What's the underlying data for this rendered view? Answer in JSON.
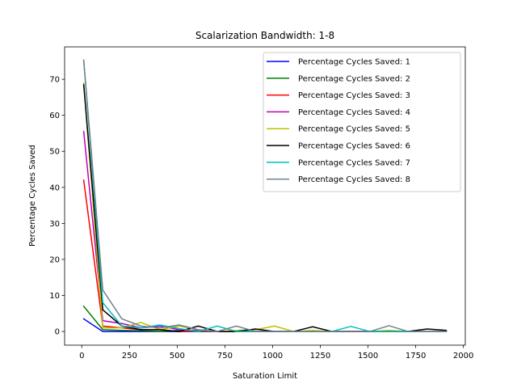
{
  "chart_data": {
    "type": "line",
    "title": "Scalarization Bandwidth: 1-8",
    "xlabel": "Saturation Limit",
    "ylabel": "Percentage Cycles Saved",
    "xlim": [
      -90,
      2010
    ],
    "ylim": [
      -3.8,
      79.0
    ],
    "xticks": [
      0,
      250,
      500,
      750,
      1000,
      1250,
      1500,
      1750,
      2000
    ],
    "yticks": [
      0,
      10,
      20,
      30,
      40,
      50,
      60,
      70
    ],
    "legend_position": "upper right",
    "x": [
      10,
      110,
      210,
      310,
      410,
      510,
      610,
      710,
      810,
      910,
      1010,
      1110,
      1210,
      1310,
      1410,
      1510,
      1610,
      1710,
      1810,
      1910
    ],
    "series": [
      {
        "name": "Percentage Cycles Saved: 1",
        "color": "#0000ff",
        "values": [
          3.5,
          0,
          0,
          0,
          0,
          0,
          0,
          0,
          0,
          0,
          0,
          0,
          0,
          0,
          0,
          0,
          0,
          0,
          0,
          0
        ]
      },
      {
        "name": "Percentage Cycles Saved: 2",
        "color": "#008000",
        "values": [
          7.0,
          0.5,
          0.3,
          0.2,
          0,
          0.3,
          0,
          0,
          0,
          0,
          0,
          0,
          0,
          0,
          0,
          0,
          0,
          0,
          0,
          0
        ]
      },
      {
        "name": "Percentage Cycles Saved: 3",
        "color": "#ff0000",
        "values": [
          42.0,
          1.5,
          1.0,
          0.5,
          0.5,
          0,
          0.2,
          0,
          0,
          0,
          0,
          0,
          0,
          0,
          0,
          0,
          0,
          0,
          0,
          0
        ]
      },
      {
        "name": "Percentage Cycles Saved: 4",
        "color": "#bf00bf",
        "values": [
          55.5,
          3.0,
          2.2,
          1.0,
          1.5,
          0.5,
          0.3,
          0,
          0,
          0,
          0,
          0,
          0,
          0,
          0,
          0,
          0,
          0,
          0,
          0
        ]
      },
      {
        "name": "Percentage Cycles Saved: 5",
        "color": "#bfbf00",
        "values": [
          69.0,
          1.0,
          1.0,
          2.5,
          0.5,
          1.5,
          0.5,
          0,
          0.3,
          0.5,
          1.5,
          0,
          0.3,
          0,
          0,
          0,
          0.3,
          0,
          0,
          0
        ]
      },
      {
        "name": "Percentage Cycles Saved: 6",
        "color": "#000000",
        "values": [
          68.5,
          6.0,
          1.5,
          0.5,
          0.5,
          0,
          1.5,
          0,
          0,
          0.7,
          0,
          0,
          1.3,
          0,
          0,
          0,
          0,
          0,
          0.7,
          0.3
        ]
      },
      {
        "name": "Percentage Cycles Saved: 7",
        "color": "#00bfbf",
        "values": [
          75.3,
          8.0,
          1.5,
          1.0,
          1.8,
          0.8,
          0,
          1.5,
          0,
          0,
          0,
          0,
          0,
          0,
          1.4,
          0,
          0,
          0,
          0,
          0
        ]
      },
      {
        "name": "Percentage Cycles Saved: 8",
        "color": "#708090",
        "values": [
          75.3,
          11.5,
          3.5,
          1.5,
          1.0,
          1.8,
          0.5,
          0,
          1.5,
          0,
          0,
          0,
          0,
          0,
          0,
          0,
          1.6,
          0,
          0,
          0
        ]
      }
    ]
  }
}
